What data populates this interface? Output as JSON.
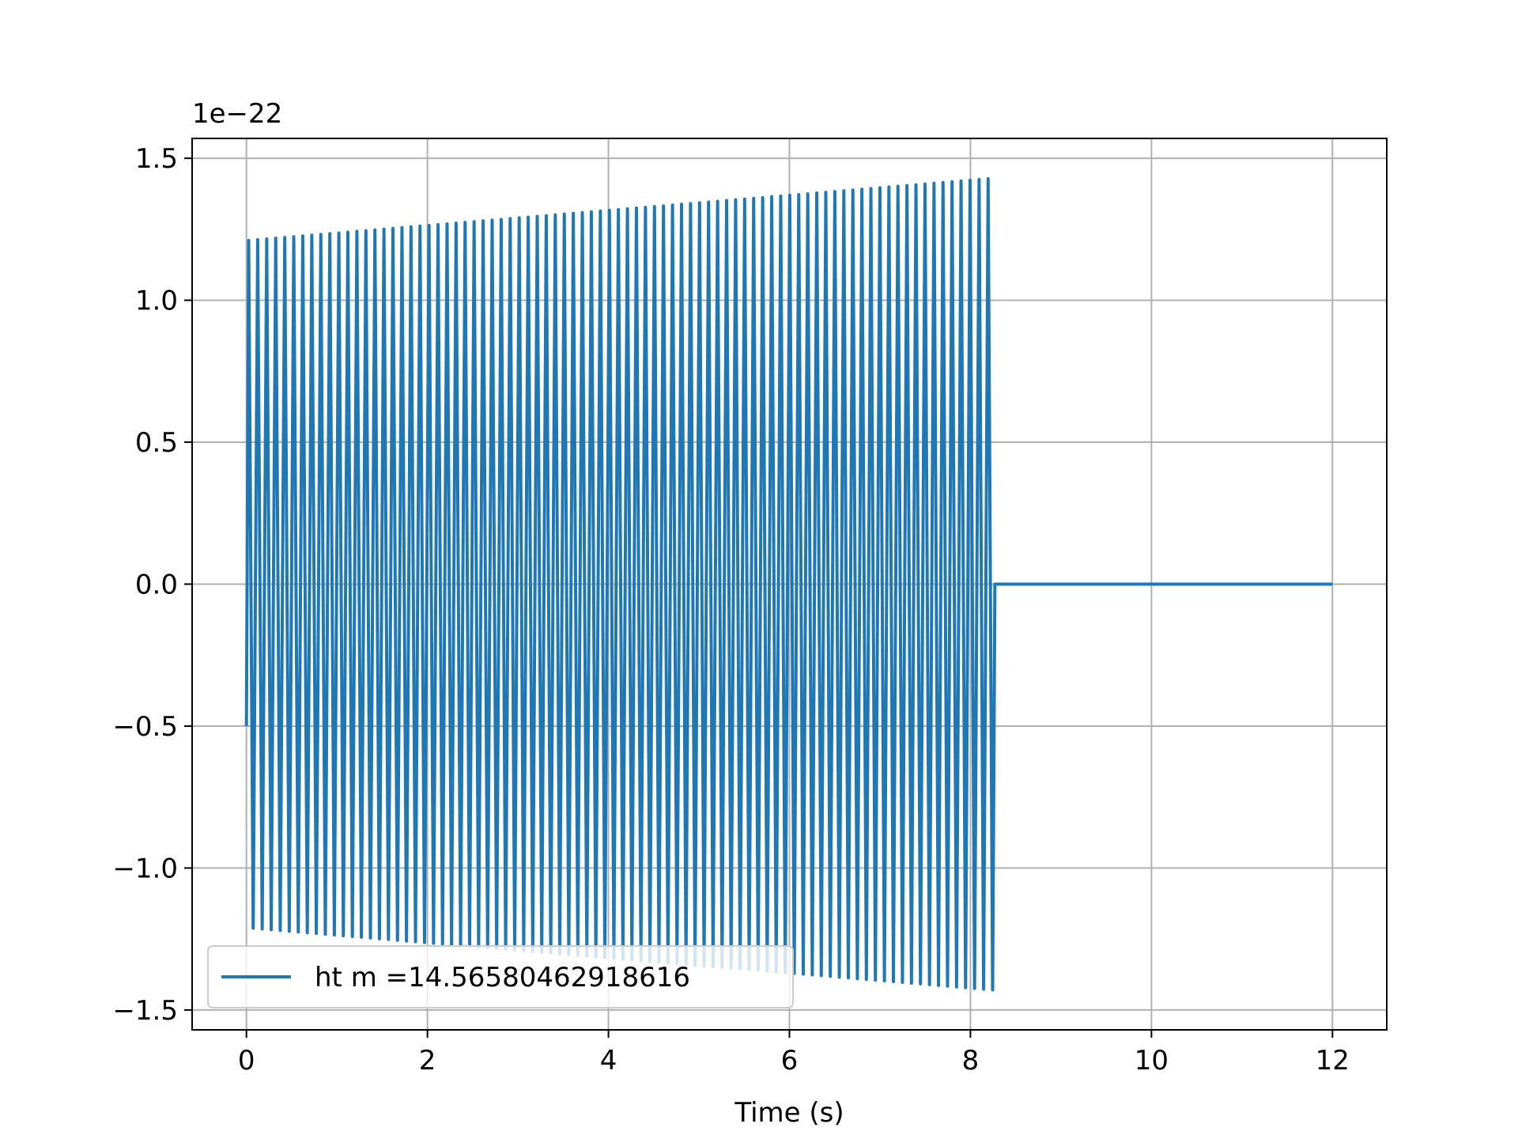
{
  "chart_data": {
    "type": "line",
    "title": "",
    "xlabel": "Time (s)",
    "ylabel": "",
    "y_offset_text": "1e−22",
    "y_scale_exponent": -22,
    "xlim": [
      -0.6,
      12.6
    ],
    "ylim": [
      -1.57,
      1.57
    ],
    "grid": true,
    "legend_position": "lower-left",
    "x_ticks": [
      0,
      2,
      4,
      6,
      8,
      10,
      12
    ],
    "x_tick_labels": [
      "0",
      "2",
      "4",
      "6",
      "8",
      "10",
      "12"
    ],
    "y_ticks": [
      1.5,
      1.0,
      0.5,
      0.0,
      -0.5,
      -1.0,
      -1.5
    ],
    "y_tick_labels": [
      "1.5",
      "1.0",
      "0.5",
      "0.0",
      "−0.5",
      "−1.0",
      "−1.5"
    ],
    "series": [
      {
        "name": "ht m =14.56580462918616",
        "color": "#1f77b4",
        "signal_start": 0.0,
        "signal_end": 8.27,
        "flat_end": 12.0,
        "amplitude_start": 1.21,
        "amplitude_end": 1.43,
        "initial_value": -0.5,
        "frequency_hz": 10.0
      }
    ]
  }
}
